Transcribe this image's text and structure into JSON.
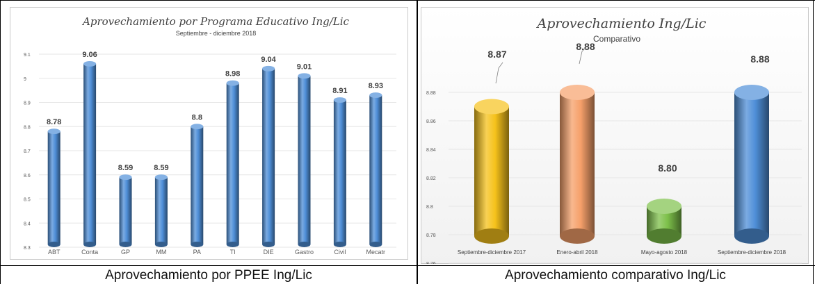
{
  "captions": {
    "left": "Aprovechamiento por PPEE Ing/Lic",
    "right": "Aprovechamiento comparativo Ing/Lic"
  },
  "colors": {
    "left_bar": "#4f8fd8",
    "right_bars": [
      "#f6c21b",
      "#f6a06a",
      "#7dc04a",
      "#4f8fd8"
    ]
  },
  "chart_data": [
    {
      "type": "bar",
      "title": "Aprovechamiento por Programa Educativo Ing/Lic",
      "subtitle": "Septiembre -  diciembre 2018",
      "categories": [
        "ABT",
        "Conta",
        "GP",
        "MM",
        "PA",
        "TI",
        "DIE",
        "Gastro",
        "Civil",
        "Mecatr"
      ],
      "values": [
        8.78,
        9.06,
        8.59,
        8.59,
        8.8,
        8.98,
        9.04,
        9.01,
        8.91,
        8.93
      ],
      "value_labels": [
        "8.78",
        "9.06",
        "8.59",
        "8.59",
        "8.8",
        "8.98",
        "9.04",
        "9.01",
        "8.91",
        "8.93"
      ],
      "ylim": [
        8.3,
        9.1
      ],
      "yticks": [
        "8.3",
        "8.4",
        "8.5",
        "8.6",
        "8.7",
        "8.8",
        "8.9",
        "9",
        "9.1"
      ],
      "grid": true
    },
    {
      "type": "bar",
      "title": "Aprovechamiento Ing/Lic",
      "subtitle": "Comparativo",
      "categories": [
        "Septiembre-diciembre 2017",
        "Enero-abril 2018",
        "Mayo-agosto 2018",
        "Septiembre-diciembre 2018"
      ],
      "values": [
        8.87,
        8.88,
        8.8,
        8.88
      ],
      "value_labels": [
        "8.87",
        "8.88",
        "8.80",
        "8.88"
      ],
      "ylim": [
        8.77,
        8.88
      ],
      "yticks": [
        "8.78",
        "8.8",
        "8.82",
        "8.84",
        "8.86",
        "8.88"
      ],
      "ytick_values": [
        8.78,
        8.8,
        8.82,
        8.84,
        8.86,
        8.88
      ],
      "ytick_bottom": "8.76",
      "grid": true
    }
  ]
}
